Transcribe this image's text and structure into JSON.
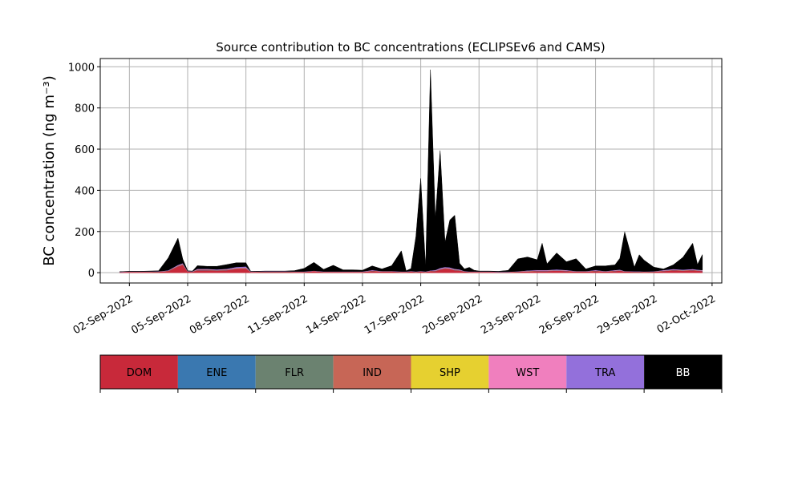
{
  "chart_data": {
    "type": "area",
    "title": "Source contribution to BC concentrations (ECLIPSEv6 and CAMS)",
    "ylabel": "BC concentration (ng m⁻³)",
    "xlabel": "",
    "ylim": [
      -50,
      1040
    ],
    "xlim": [
      "2022-08-31T12:00",
      "2022-10-02T12:00"
    ],
    "yticks": [
      0,
      200,
      400,
      600,
      800,
      1000
    ],
    "xticks": [
      "02-Sep-2022",
      "05-Sep-2022",
      "08-Sep-2022",
      "11-Sep-2022",
      "14-Sep-2022",
      "17-Sep-2022",
      "20-Sep-2022",
      "23-Sep-2022",
      "26-Sep-2022",
      "29-Sep-2022",
      "02-Oct-2022"
    ],
    "grid": true,
    "stacked": true,
    "x": [
      "2022-09-01T12:00",
      "2022-09-02T00:00",
      "2022-09-02T12:00",
      "2022-09-03T00:00",
      "2022-09-03T12:00",
      "2022-09-04T00:00",
      "2022-09-04T12:00",
      "2022-09-04T18:00",
      "2022-09-05T00:00",
      "2022-09-05T06:00",
      "2022-09-05T12:00",
      "2022-09-06T00:00",
      "2022-09-06T12:00",
      "2022-09-07T00:00",
      "2022-09-07T12:00",
      "2022-09-08T00:00",
      "2022-09-08T06:00",
      "2022-09-08T12:00",
      "2022-09-09T00:00",
      "2022-09-09T12:00",
      "2022-09-10T00:00",
      "2022-09-10T12:00",
      "2022-09-11T00:00",
      "2022-09-11T12:00",
      "2022-09-12T00:00",
      "2022-09-12T12:00",
      "2022-09-13T00:00",
      "2022-09-13T12:00",
      "2022-09-14T00:00",
      "2022-09-14T12:00",
      "2022-09-15T00:00",
      "2022-09-15T12:00",
      "2022-09-16T00:00",
      "2022-09-16T06:00",
      "2022-09-16T12:00",
      "2022-09-16T18:00",
      "2022-09-17T00:00",
      "2022-09-17T06:00",
      "2022-09-17T12:00",
      "2022-09-17T18:00",
      "2022-09-18T00:00",
      "2022-09-18T06:00",
      "2022-09-18T12:00",
      "2022-09-18T18:00",
      "2022-09-19T00:00",
      "2022-09-19T06:00",
      "2022-09-19T12:00",
      "2022-09-19T18:00",
      "2022-09-20T00:00",
      "2022-09-20T12:00",
      "2022-09-21T00:00",
      "2022-09-21T12:00",
      "2022-09-22T00:00",
      "2022-09-22T12:00",
      "2022-09-23T00:00",
      "2022-09-23T06:00",
      "2022-09-23T12:00",
      "2022-09-24T00:00",
      "2022-09-24T12:00",
      "2022-09-25T00:00",
      "2022-09-25T12:00",
      "2022-09-26T00:00",
      "2022-09-26T12:00",
      "2022-09-27T00:00",
      "2022-09-27T06:00",
      "2022-09-27T12:00",
      "2022-09-28T00:00",
      "2022-09-28T06:00",
      "2022-09-28T12:00",
      "2022-09-29T00:00",
      "2022-09-29T12:00",
      "2022-09-30T00:00",
      "2022-09-30T12:00",
      "2022-10-01T00:00",
      "2022-10-01T06:00",
      "2022-10-01T12:00"
    ],
    "series": [
      {
        "name": "DOM",
        "color": "#c8293a",
        "values": [
          3,
          4,
          4,
          4,
          5,
          8,
          30,
          38,
          6,
          5,
          12,
          12,
          10,
          12,
          18,
          20,
          4,
          4,
          5,
          5,
          5,
          4,
          4,
          8,
          4,
          4,
          4,
          4,
          4,
          8,
          6,
          6,
          4,
          4,
          6,
          4,
          6,
          4,
          8,
          8,
          15,
          20,
          18,
          12,
          10,
          6,
          4,
          4,
          4,
          4,
          3,
          3,
          5,
          6,
          8,
          8,
          8,
          10,
          8,
          6,
          6,
          8,
          6,
          8,
          10,
          6,
          5,
          5,
          4,
          5,
          8,
          12,
          10,
          12,
          10,
          8
        ]
      },
      {
        "name": "ENE",
        "color": "#3a78b0",
        "values": [
          0,
          0,
          0,
          0,
          0,
          0,
          1,
          1,
          0,
          0,
          1,
          1,
          1,
          1,
          1,
          1,
          0,
          0,
          0,
          0,
          0,
          0,
          0,
          0,
          0,
          0,
          0,
          0,
          0,
          1,
          0,
          0,
          0,
          0,
          0,
          0,
          0,
          0,
          0,
          1,
          1,
          1,
          1,
          1,
          1,
          0,
          0,
          0,
          0,
          0,
          0,
          0,
          0,
          1,
          1,
          1,
          1,
          1,
          1,
          0,
          0,
          1,
          0,
          1,
          1,
          0,
          0,
          0,
          0,
          0,
          1,
          1,
          1,
          1,
          1,
          1
        ]
      },
      {
        "name": "FLR",
        "color": "#6b8270",
        "values": [
          0,
          0,
          0,
          0,
          0,
          0,
          0,
          0,
          0,
          0,
          0,
          0,
          0,
          0,
          0,
          0,
          0,
          0,
          0,
          0,
          0,
          0,
          0,
          0,
          0,
          0,
          0,
          0,
          0,
          0,
          0,
          0,
          0,
          0,
          0,
          0,
          0,
          0,
          0,
          0,
          0,
          0,
          0,
          0,
          0,
          0,
          0,
          0,
          0,
          0,
          0,
          0,
          0,
          0,
          0,
          0,
          0,
          0,
          0,
          0,
          0,
          0,
          0,
          0,
          0,
          0,
          0,
          0,
          0,
          0,
          0,
          0,
          0,
          0,
          0,
          0
        ]
      },
      {
        "name": "IND",
        "color": "#c76656",
        "values": [
          1,
          1,
          1,
          1,
          1,
          2,
          3,
          3,
          1,
          1,
          2,
          2,
          2,
          2,
          3,
          3,
          1,
          1,
          1,
          1,
          1,
          1,
          1,
          1,
          1,
          1,
          1,
          1,
          1,
          1,
          1,
          1,
          1,
          1,
          1,
          1,
          1,
          1,
          1,
          1,
          2,
          2,
          2,
          2,
          2,
          1,
          1,
          1,
          1,
          1,
          1,
          1,
          1,
          1,
          1,
          1,
          1,
          1,
          1,
          1,
          1,
          1,
          1,
          1,
          1,
          1,
          1,
          1,
          1,
          1,
          1,
          1,
          1,
          1,
          1,
          1
        ]
      },
      {
        "name": "SHP",
        "color": "#e6d030",
        "values": [
          0,
          0,
          0,
          0,
          0,
          0,
          0,
          0,
          0,
          0,
          0,
          0,
          0,
          0,
          0,
          0,
          0,
          0,
          0,
          0,
          0,
          0,
          0,
          0,
          0,
          0,
          0,
          0,
          0,
          0,
          0,
          0,
          0,
          0,
          0,
          0,
          0,
          0,
          0,
          0,
          0,
          0,
          0,
          0,
          0,
          0,
          0,
          0,
          0,
          0,
          0,
          0,
          0,
          0,
          0,
          0,
          0,
          0,
          0,
          0,
          0,
          0,
          0,
          0,
          0,
          0,
          0,
          0,
          0,
          0,
          0,
          0,
          0,
          0,
          0,
          0
        ]
      },
      {
        "name": "WST",
        "color": "#f07fbe",
        "values": [
          0,
          0,
          0,
          0,
          0,
          0,
          1,
          1,
          0,
          0,
          1,
          1,
          1,
          1,
          1,
          1,
          0,
          0,
          0,
          0,
          0,
          0,
          0,
          0,
          0,
          0,
          0,
          0,
          0,
          1,
          0,
          0,
          0,
          0,
          0,
          0,
          0,
          0,
          0,
          1,
          1,
          1,
          1,
          1,
          1,
          0,
          0,
          0,
          0,
          0,
          0,
          0,
          0,
          1,
          1,
          1,
          1,
          1,
          1,
          0,
          0,
          1,
          0,
          1,
          1,
          0,
          0,
          0,
          0,
          0,
          1,
          1,
          1,
          1,
          1,
          1
        ]
      },
      {
        "name": "TRA",
        "color": "#9370db",
        "values": [
          1,
          1,
          1,
          1,
          1,
          2,
          3,
          3,
          1,
          1,
          3,
          3,
          2,
          3,
          5,
          5,
          1,
          1,
          1,
          1,
          1,
          1,
          1,
          1,
          1,
          1,
          1,
          1,
          1,
          2,
          1,
          1,
          1,
          1,
          1,
          1,
          1,
          1,
          2,
          2,
          4,
          4,
          4,
          3,
          2,
          1,
          1,
          1,
          1,
          1,
          1,
          1,
          1,
          2,
          2,
          2,
          2,
          3,
          2,
          1,
          1,
          2,
          1,
          2,
          2,
          1,
          1,
          1,
          1,
          1,
          2,
          3,
          2,
          3,
          2,
          2
        ]
      },
      {
        "name": "BB",
        "color": "#000000",
        "values": [
          0,
          1,
          1,
          2,
          2,
          60,
          130,
          20,
          1,
          1,
          15,
          12,
          15,
          20,
          20,
          18,
          0,
          1,
          1,
          1,
          1,
          4,
          15,
          40,
          10,
          30,
          8,
          8,
          6,
          20,
          10,
          26,
          100,
          3,
          12,
          170,
          450,
          20,
          975,
          250,
          570,
          120,
          230,
          260,
          30,
          10,
          20,
          6,
          2,
          2,
          2,
          6,
          60,
          65,
          50,
          130,
          30,
          80,
          40,
          60,
          10,
          20,
          25,
          25,
          55,
          190,
          20,
          80,
          55,
          20,
          5,
          20,
          60,
          125,
          25,
          75
        ]
      }
    ]
  },
  "legend": {
    "items": [
      {
        "label": "DOM",
        "color": "#c8293a",
        "text_color": "#000000"
      },
      {
        "label": "ENE",
        "color": "#3a78b0",
        "text_color": "#000000"
      },
      {
        "label": "FLR",
        "color": "#6b8270",
        "text_color": "#000000"
      },
      {
        "label": "IND",
        "color": "#c76656",
        "text_color": "#000000"
      },
      {
        "label": "SHP",
        "color": "#e6d030",
        "text_color": "#000000"
      },
      {
        "label": "WST",
        "color": "#f07fbe",
        "text_color": "#000000"
      },
      {
        "label": "TRA",
        "color": "#9370db",
        "text_color": "#000000"
      },
      {
        "label": "BB",
        "color": "#000000",
        "text_color": "#ffffff"
      }
    ]
  }
}
